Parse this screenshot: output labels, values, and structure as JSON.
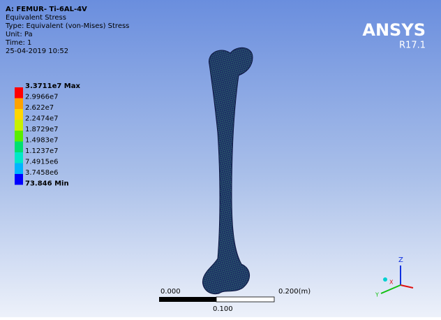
{
  "header": {
    "title": "A: FEMUR- Ti-6AL-4V",
    "result": "Equivalent Stress",
    "type": "Type: Equivalent (von-Mises) Stress",
    "unit": "Unit: Pa",
    "time": "Time: 1",
    "date": "25-04-2019 10:52"
  },
  "logo": {
    "name": "ANSYS",
    "version": "R17.1"
  },
  "legend": {
    "labels": [
      "3.3711e7 Max",
      "2.9966e7",
      "2.622e7",
      "2.2474e7",
      "1.8729e7",
      "1.4983e7",
      "1.1237e7",
      "7.4915e6",
      "3.7458e6",
      "73.846 Min"
    ],
    "bands": [
      "#ff0000",
      "#ffa200",
      "#ffd600",
      "#c8f000",
      "#5aee00",
      "#00e070",
      "#00e8c8",
      "#00b4ff",
      "#0000ff"
    ]
  },
  "scale_bar": {
    "start": "0.000",
    "end": "0.200(m)",
    "mid": "0.100"
  },
  "triad": {
    "x": "X",
    "y": "Y",
    "z": "Z"
  }
}
